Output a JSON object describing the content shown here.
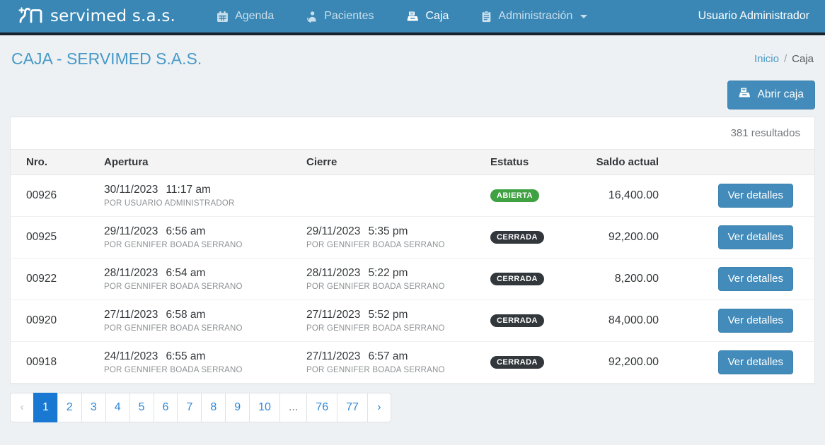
{
  "navbar": {
    "brand": "servimed s.a.s.",
    "items": [
      {
        "label": "Agenda",
        "icon": "calendar-icon",
        "active": false
      },
      {
        "label": "Pacientes",
        "icon": "patient-icon",
        "active": false
      },
      {
        "label": "Caja",
        "icon": "cash-register-icon",
        "active": true
      },
      {
        "label": "Administración",
        "icon": "clipboard-icon",
        "active": false,
        "has_dropdown": true
      }
    ],
    "user": "Usuario Administrador"
  },
  "page": {
    "title": "CAJA - SERVIMED S.A.S.",
    "breadcrumb": {
      "home": "Inicio",
      "separator": "/",
      "current": "Caja"
    },
    "open_button_label": "Abrir caja",
    "results_count": "381 resultados"
  },
  "table": {
    "headers": {
      "nro": "Nro.",
      "apertura": "Apertura",
      "cierre": "Cierre",
      "estatus": "Estatus",
      "saldo": "Saldo actual"
    },
    "rows": [
      {
        "nro": "00926",
        "apertura_date": "30/11/2023",
        "apertura_time": "11:17 am",
        "apertura_by": "POR USUARIO ADMINISTRADOR",
        "cierre_date": "",
        "cierre_time": "",
        "cierre_by": "",
        "status": "ABIERTA",
        "status_type": "open",
        "saldo": "16,400.00",
        "action": "Ver detalles"
      },
      {
        "nro": "00925",
        "apertura_date": "29/11/2023",
        "apertura_time": "6:56 am",
        "apertura_by": "POR GENNIFER BOADA SERRANO",
        "cierre_date": "29/11/2023",
        "cierre_time": "5:35 pm",
        "cierre_by": "POR GENNIFER BOADA SERRANO",
        "status": "CERRADA",
        "status_type": "closed",
        "saldo": "92,200.00",
        "action": "Ver detalles"
      },
      {
        "nro": "00922",
        "apertura_date": "28/11/2023",
        "apertura_time": "6:54 am",
        "apertura_by": "POR GENNIFER BOADA SERRANO",
        "cierre_date": "28/11/2023",
        "cierre_time": "5:22 pm",
        "cierre_by": "POR GENNIFER BOADA SERRANO",
        "status": "CERRADA",
        "status_type": "closed",
        "saldo": "8,200.00",
        "action": "Ver detalles"
      },
      {
        "nro": "00920",
        "apertura_date": "27/11/2023",
        "apertura_time": "6:58 am",
        "apertura_by": "POR GENNIFER BOADA SERRANO",
        "cierre_date": "27/11/2023",
        "cierre_time": "5:52 pm",
        "cierre_by": "POR GENNIFER BOADA SERRANO",
        "status": "CERRADA",
        "status_type": "closed",
        "saldo": "84,000.00",
        "action": "Ver detalles"
      },
      {
        "nro": "00918",
        "apertura_date": "24/11/2023",
        "apertura_time": "6:55 am",
        "apertura_by": "POR GENNIFER BOADA SERRANO",
        "cierre_date": "27/11/2023",
        "cierre_time": "6:57 am",
        "cierre_by": "POR GENNIFER BOADA SERRANO",
        "status": "CERRADA",
        "status_type": "closed",
        "saldo": "92,200.00",
        "action": "Ver detalles"
      }
    ]
  },
  "pagination": {
    "prev": "‹",
    "pages": [
      "1",
      "2",
      "3",
      "4",
      "5",
      "6",
      "7",
      "8",
      "9",
      "10",
      "...",
      "76",
      "77"
    ],
    "active": "1",
    "next": "›"
  },
  "colors": {
    "navbar_bg": "#3a87b5",
    "navbar_strip": "#18222b",
    "accent_blue": "#428bba",
    "title_blue": "#4799c8",
    "badge_open_green": "#3fa142",
    "badge_closed_dark": "#32373b",
    "pagination_active_blue": "#1878d2"
  }
}
